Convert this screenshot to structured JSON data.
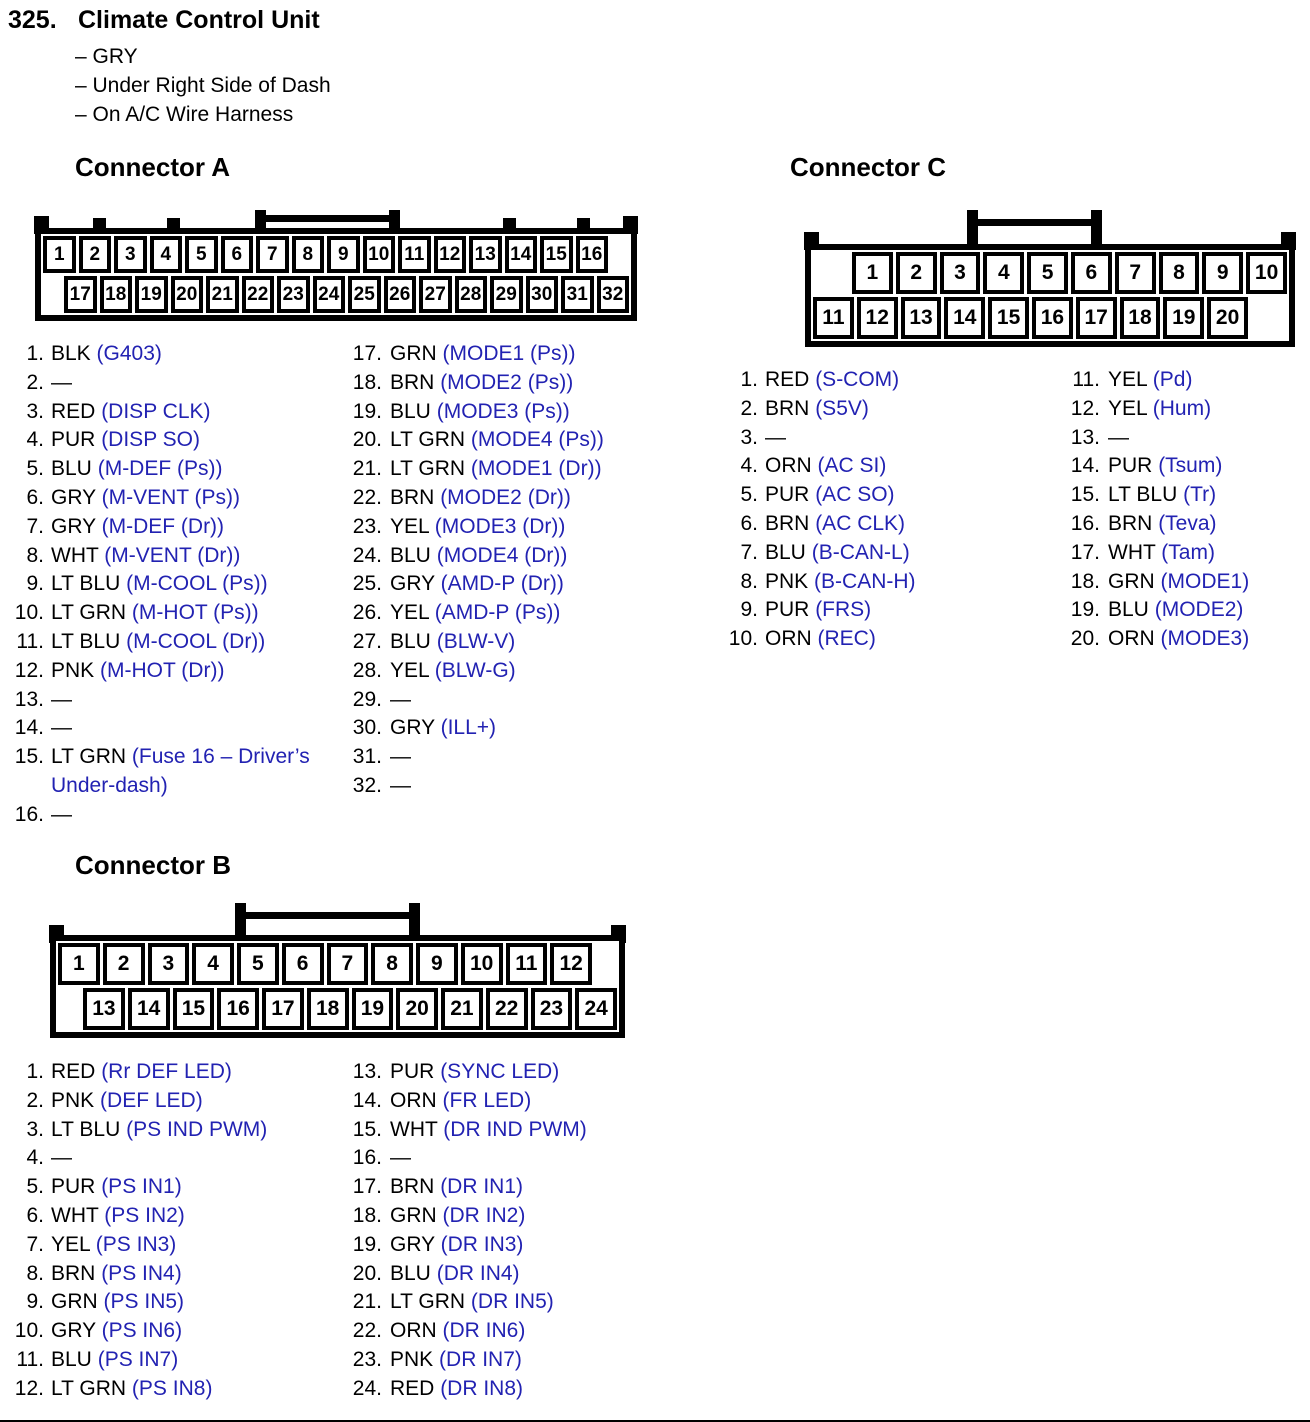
{
  "page": {
    "item_number": "325.",
    "title": "Climate Control Unit",
    "details": [
      "– GRY",
      "– Under Right Side of Dash",
      "– On A/C Wire Harness"
    ],
    "colors": {
      "ink": "#000000",
      "signal_blue": "#2222b2",
      "paper": "#ffffff"
    }
  },
  "connector_a": {
    "heading": "Connector A",
    "diagram": {
      "top_pins": [
        "1",
        "2",
        "3",
        "4",
        "5",
        "6",
        "7",
        "8",
        "9",
        "10",
        "11",
        "12",
        "13",
        "14",
        "15",
        "16"
      ],
      "bottom_pins": [
        "17",
        "18",
        "19",
        "20",
        "21",
        "22",
        "23",
        "24",
        "25",
        "26",
        "27",
        "28",
        "29",
        "30",
        "31",
        "32"
      ]
    },
    "columns": {
      "left": [
        {
          "n": "1",
          "wire": "BLK",
          "signal": "(G403)"
        },
        {
          "n": "2",
          "wire": "—",
          "signal": ""
        },
        {
          "n": "3",
          "wire": "RED",
          "signal": "(DISP CLK)"
        },
        {
          "n": "4",
          "wire": "PUR",
          "signal": "(DISP SO)"
        },
        {
          "n": "5",
          "wire": "BLU",
          "signal": "(M-DEF (Ps))"
        },
        {
          "n": "6",
          "wire": "GRY",
          "signal": "(M-VENT (Ps))"
        },
        {
          "n": "7",
          "wire": "GRY",
          "signal": "(M-DEF (Dr))"
        },
        {
          "n": "8",
          "wire": "WHT",
          "signal": "(M-VENT (Dr))"
        },
        {
          "n": "9",
          "wire": "LT BLU",
          "signal": "(M-COOL (Ps))"
        },
        {
          "n": "10",
          "wire": "LT GRN",
          "signal": "(M-HOT (Ps))"
        },
        {
          "n": "11",
          "wire": "LT BLU",
          "signal": "(M-COOL (Dr))"
        },
        {
          "n": "12",
          "wire": "PNK",
          "signal": "(M-HOT (Dr))"
        },
        {
          "n": "13",
          "wire": "—",
          "signal": ""
        },
        {
          "n": "14",
          "wire": "—",
          "signal": ""
        },
        {
          "n": "15",
          "wire": "LT GRN",
          "signal": "(Fuse 16 – Driver’s Under-dash)"
        },
        {
          "n": "16",
          "wire": "—",
          "signal": ""
        }
      ],
      "right": [
        {
          "n": "17",
          "wire": "GRN",
          "signal": "(MODE1 (Ps))"
        },
        {
          "n": "18",
          "wire": "BRN",
          "signal": "(MODE2 (Ps))"
        },
        {
          "n": "19",
          "wire": "BLU",
          "signal": "(MODE3 (Ps))"
        },
        {
          "n": "20",
          "wire": "LT GRN",
          "signal": "(MODE4 (Ps))"
        },
        {
          "n": "21",
          "wire": "LT GRN",
          "signal": "(MODE1 (Dr))"
        },
        {
          "n": "22",
          "wire": "BRN",
          "signal": "(MODE2 (Dr))"
        },
        {
          "n": "23",
          "wire": "YEL",
          "signal": "(MODE3 (Dr))"
        },
        {
          "n": "24",
          "wire": "BLU",
          "signal": "(MODE4 (Dr))"
        },
        {
          "n": "25",
          "wire": "GRY",
          "signal": "(AMD-P (Dr))"
        },
        {
          "n": "26",
          "wire": "YEL",
          "signal": "(AMD-P (Ps))"
        },
        {
          "n": "27",
          "wire": "BLU",
          "signal": "(BLW-V)"
        },
        {
          "n": "28",
          "wire": "YEL",
          "signal": "(BLW-G)"
        },
        {
          "n": "29",
          "wire": "—",
          "signal": ""
        },
        {
          "n": "30",
          "wire": "GRY",
          "signal": "(ILL+)"
        },
        {
          "n": "31",
          "wire": "—",
          "signal": ""
        },
        {
          "n": "32",
          "wire": "—",
          "signal": ""
        }
      ]
    }
  },
  "connector_c": {
    "heading": "Connector C",
    "diagram": {
      "top_pins": [
        "1",
        "2",
        "3",
        "4",
        "5",
        "6",
        "7",
        "8",
        "9",
        "10"
      ],
      "bottom_pins": [
        "11",
        "12",
        "13",
        "14",
        "15",
        "16",
        "17",
        "18",
        "19",
        "20"
      ]
    },
    "columns": {
      "left": [
        {
          "n": "1",
          "wire": "RED",
          "signal": "(S-COM)"
        },
        {
          "n": "2",
          "wire": "BRN",
          "signal": "(S5V)"
        },
        {
          "n": "3",
          "wire": "—",
          "signal": ""
        },
        {
          "n": "4",
          "wire": "ORN",
          "signal": "(AC SI)"
        },
        {
          "n": "5",
          "wire": "PUR",
          "signal": "(AC SO)"
        },
        {
          "n": "6",
          "wire": "BRN",
          "signal": "(AC CLK)"
        },
        {
          "n": "7",
          "wire": "BLU",
          "signal": "(B-CAN-L)"
        },
        {
          "n": "8",
          "wire": "PNK",
          "signal": "(B-CAN-H)"
        },
        {
          "n": "9",
          "wire": "PUR",
          "signal": "(FRS)"
        },
        {
          "n": "10",
          "wire": "ORN",
          "signal": "(REC)"
        }
      ],
      "right": [
        {
          "n": "11",
          "wire": "YEL",
          "signal": "(Pd)"
        },
        {
          "n": "12",
          "wire": "YEL",
          "signal": "(Hum)"
        },
        {
          "n": "13",
          "wire": "—",
          "signal": ""
        },
        {
          "n": "14",
          "wire": "PUR",
          "signal": "(Tsum)"
        },
        {
          "n": "15",
          "wire": "LT BLU",
          "signal": "(Tr)"
        },
        {
          "n": "16",
          "wire": "BRN",
          "signal": "(Teva)"
        },
        {
          "n": "17",
          "wire": "WHT",
          "signal": "(Tam)"
        },
        {
          "n": "18",
          "wire": "GRN",
          "signal": "(MODE1)"
        },
        {
          "n": "19",
          "wire": "BLU",
          "signal": "(MODE2)"
        },
        {
          "n": "20",
          "wire": "ORN",
          "signal": "(MODE3)"
        }
      ]
    }
  },
  "connector_b": {
    "heading": "Connector B",
    "diagram": {
      "top_pins": [
        "1",
        "2",
        "3",
        "4",
        "5",
        "6",
        "7",
        "8",
        "9",
        "10",
        "11",
        "12"
      ],
      "bottom_pins": [
        "13",
        "14",
        "15",
        "16",
        "17",
        "18",
        "19",
        "20",
        "21",
        "22",
        "23",
        "24"
      ]
    },
    "columns": {
      "left": [
        {
          "n": "1",
          "wire": "RED",
          "signal": "(Rr DEF LED)"
        },
        {
          "n": "2",
          "wire": "PNK",
          "signal": "(DEF LED)"
        },
        {
          "n": "3",
          "wire": "LT BLU",
          "signal": "(PS IND PWM)"
        },
        {
          "n": "4",
          "wire": "—",
          "signal": ""
        },
        {
          "n": "5",
          "wire": "PUR",
          "signal": "(PS IN1)"
        },
        {
          "n": "6",
          "wire": "WHT",
          "signal": "(PS IN2)"
        },
        {
          "n": "7",
          "wire": "YEL",
          "signal": "(PS IN3)"
        },
        {
          "n": "8",
          "wire": "BRN",
          "signal": "(PS IN4)"
        },
        {
          "n": "9",
          "wire": "GRN",
          "signal": "(PS IN5)"
        },
        {
          "n": "10",
          "wire": "GRY",
          "signal": "(PS IN6)"
        },
        {
          "n": "11",
          "wire": "BLU",
          "signal": "(PS IN7)"
        },
        {
          "n": "12",
          "wire": "LT GRN",
          "signal": "(PS IN8)"
        }
      ],
      "right": [
        {
          "n": "13",
          "wire": "PUR",
          "signal": "(SYNC LED)"
        },
        {
          "n": "14",
          "wire": "ORN",
          "signal": "(FR LED)"
        },
        {
          "n": "15",
          "wire": "WHT",
          "signal": "(DR IND PWM)"
        },
        {
          "n": "16",
          "wire": "—",
          "signal": ""
        },
        {
          "n": "17",
          "wire": "BRN",
          "signal": "(DR IN1)"
        },
        {
          "n": "18",
          "wire": "GRN",
          "signal": "(DR IN2)"
        },
        {
          "n": "19",
          "wire": "GRY",
          "signal": "(DR IN3)"
        },
        {
          "n": "20",
          "wire": "BLU",
          "signal": "(DR IN4)"
        },
        {
          "n": "21",
          "wire": "LT GRN",
          "signal": "(DR IN5)"
        },
        {
          "n": "22",
          "wire": "ORN",
          "signal": "(DR IN6)"
        },
        {
          "n": "23",
          "wire": "PNK",
          "signal": "(DR IN7)"
        },
        {
          "n": "24",
          "wire": "RED",
          "signal": "(DR IN8)"
        }
      ]
    }
  }
}
